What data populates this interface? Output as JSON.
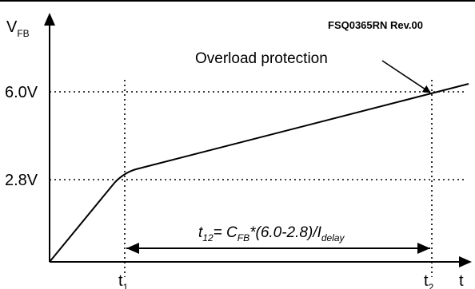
{
  "header": {
    "doc_code": "FSQ0365RN Rev.00"
  },
  "axes": {
    "y_label": "V",
    "y_label_sub": "FB",
    "x_label": "t",
    "y_ticks": [
      {
        "label": "6.0V"
      },
      {
        "label": "2.8V"
      }
    ],
    "x_ticks": [
      {
        "label": "t",
        "sub": "1"
      },
      {
        "label": "t",
        "sub": "2"
      }
    ]
  },
  "annotation": {
    "text": "Overload protection"
  },
  "formula": {
    "t": "t",
    "t_sub": "12",
    "eq": "= C",
    "c_sub": "FB",
    "mid": "*(6.0-2.8)/I",
    "i_sub": "delay"
  },
  "colors": {
    "line": "#000000",
    "background": "#ffffff"
  }
}
